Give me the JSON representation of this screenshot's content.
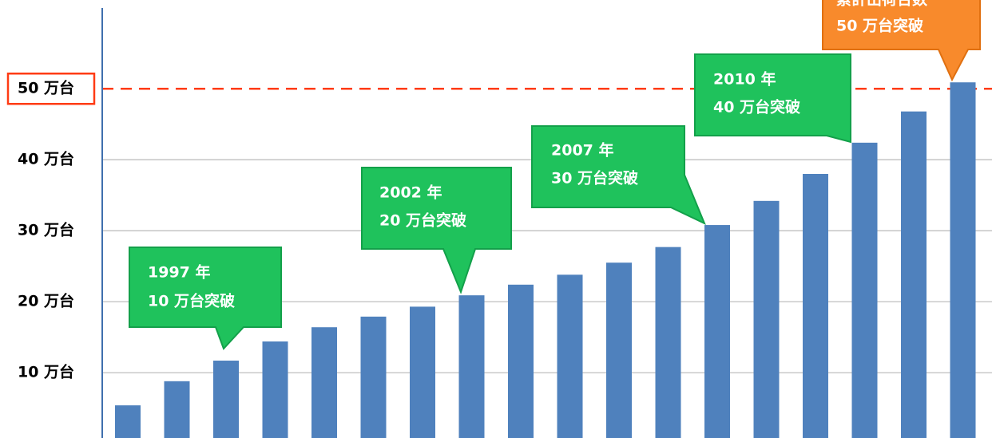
{
  "chart_data": {
    "type": "bar",
    "categories": [
      null,
      null,
      null,
      null,
      null,
      null,
      null,
      null,
      null,
      null,
      null,
      null,
      null,
      null,
      null,
      null,
      null,
      null
    ],
    "values": [
      5.4,
      8.8,
      11.7,
      14.4,
      16.4,
      17.9,
      19.3,
      20.9,
      22.4,
      23.8,
      25.5,
      27.7,
      30.8,
      34.2,
      38.0,
      42.4,
      46.8,
      50.9
    ],
    "color": "#4f81bd",
    "ylim": [
      0.8,
      62.5
    ],
    "yticks": [
      {
        "value": 10,
        "label": "10 万台"
      },
      {
        "value": 20,
        "label": "20 万台"
      },
      {
        "value": 30,
        "label": "30 万台"
      },
      {
        "value": 40,
        "label": "40 万台"
      },
      {
        "value": 50,
        "label": "50 万台"
      }
    ],
    "grid": true,
    "reference_line": {
      "value": 50,
      "color": "#ff3b14",
      "style": "dashed"
    },
    "annotations": [
      {
        "lines": [
          "1997 年",
          "10 万台突破"
        ],
        "color": "#1fc25c"
      },
      {
        "lines": [
          "2002 年",
          "20 万台突破"
        ],
        "color": "#1fc25c"
      },
      {
        "lines": [
          "2007 年",
          "30 万台突破"
        ],
        "color": "#1fc25c"
      },
      {
        "lines": [
          "2010 年",
          "40 万台突破"
        ],
        "color": "#1fc25c"
      },
      {
        "lines": [
          "累計出荷台数",
          "50 万台突破"
        ],
        "color": "#f88a2c"
      }
    ]
  }
}
